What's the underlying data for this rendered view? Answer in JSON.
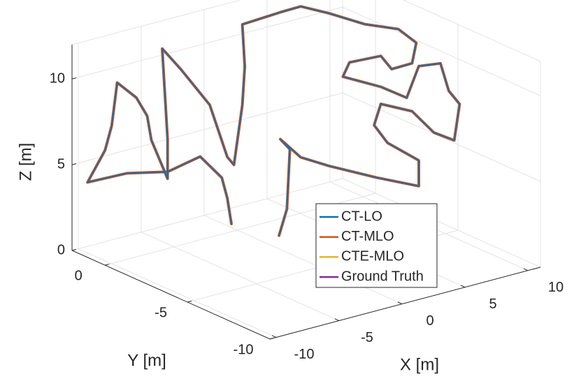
{
  "chart_data": {
    "type": "line3d",
    "xlabel": "X [m]",
    "ylabel": "Y [m]",
    "zlabel": "Z [m]",
    "xlim": [
      -10.5,
      11
    ],
    "ylim": [
      -10,
      2
    ],
    "zlim": [
      0,
      12
    ],
    "xticks": [
      -10,
      -5,
      0,
      5,
      10
    ],
    "yticks": [
      -10,
      -5,
      0
    ],
    "zticks": [
      0,
      5,
      10
    ],
    "grid": true,
    "series": [
      {
        "name": "CT-LO",
        "color": "#0072bd",
        "x": [
          -1.5,
          -1.7,
          -2.0,
          -3.2,
          -5.0,
          -7.2,
          -9.4,
          -8.4,
          -8.0,
          -7.7,
          -6.7,
          -6.1,
          -5.9,
          -5.0,
          -5.0,
          -5.3,
          -4.2,
          -2.7,
          -1.7,
          -1.3,
          -0.9,
          -0.7,
          -0.9,
          1.2,
          2.3,
          3.9,
          5.8,
          7.7,
          8.6,
          8.4,
          7.3,
          6.7,
          5.0,
          4.6,
          6.7,
          8.1,
          8.8,
          10.0,
          10.4,
          11.0,
          10.7,
          9.6,
          8.4,
          6.7,
          6.3,
          7.1,
          8.8,
          8.8,
          6.5,
          3.9,
          2.3,
          1.2,
          1.7,
          1.6,
          1.1
        ],
        "y": [
          -0.8,
          -0.7,
          -0.6,
          -0.2,
          0.4,
          1.2,
          1.9,
          1.6,
          1.5,
          1.4,
          1.0,
          0.8,
          0.7,
          0.4,
          0.4,
          0.5,
          0.2,
          -0.4,
          -0.7,
          -0.8,
          -1.0,
          -1.0,
          -1.0,
          -1.7,
          -2.1,
          -2.6,
          -3.3,
          -3.9,
          -4.3,
          -4.2,
          -3.8,
          -3.6,
          -3.0,
          -2.9,
          -3.6,
          -4.1,
          -4.3,
          -4.7,
          -4.9,
          -5.1,
          -5.0,
          -4.6,
          -4.2,
          -3.6,
          -3.5,
          -3.7,
          -4.3,
          -4.3,
          -3.5,
          -2.6,
          -2.1,
          -1.7,
          -1.9,
          -1.8,
          -1.7
        ],
        "z": [
          1.0,
          2.5,
          3.7,
          5.0,
          4.2,
          4.2,
          3.8,
          5.6,
          7.0,
          9.5,
          8.6,
          7.5,
          6.1,
          3.8,
          6.1,
          11.4,
          10.1,
          8.0,
          4.9,
          4.4,
          7.9,
          10.1,
          12.6,
          13.2,
          13.5,
          13.0,
          12.3,
          11.9,
          11.1,
          9.9,
          9.6,
          10.4,
          10.1,
          9.3,
          8.6,
          7.9,
          9.7,
          9.8,
          8.2,
          7.4,
          5.3,
          5.8,
          7.1,
          7.6,
          6.4,
          5.3,
          4.2,
          2.7,
          3.3,
          4.1,
          4.7,
          5.8,
          5.2,
          1.7,
          0.2
        ]
      },
      {
        "name": "CT-MLO",
        "color": "#d95319",
        "x": [
          -1.5,
          -1.7,
          -2.0,
          -3.2,
          -5.0,
          -7.2,
          -9.4,
          -8.4,
          -8.0,
          -7.7,
          -6.7,
          -6.1,
          -5.9,
          -5.0,
          -5.0,
          -5.3,
          -4.2,
          -2.7,
          -1.7,
          -1.3,
          -0.9,
          -0.7,
          -0.9,
          1.2,
          2.3,
          3.9,
          5.8,
          7.7,
          8.6,
          8.4,
          7.3,
          6.7,
          5.0,
          4.6,
          6.7,
          8.1,
          8.8,
          10.0,
          10.4,
          11.0,
          10.7,
          9.6,
          8.4,
          6.7,
          6.3,
          7.1,
          8.8,
          8.8,
          6.5,
          3.9,
          2.3,
          1.2,
          1.7,
          1.6,
          1.1
        ],
        "y": [
          -0.8,
          -0.7,
          -0.6,
          -0.2,
          0.4,
          1.2,
          1.9,
          1.6,
          1.5,
          1.4,
          1.0,
          0.8,
          0.7,
          0.4,
          0.4,
          0.5,
          0.2,
          -0.4,
          -0.7,
          -0.8,
          -1.0,
          -1.0,
          -1.0,
          -1.7,
          -2.1,
          -2.6,
          -3.3,
          -3.9,
          -4.3,
          -4.2,
          -3.8,
          -3.6,
          -3.0,
          -2.9,
          -3.6,
          -4.1,
          -4.3,
          -4.7,
          -4.9,
          -5.1,
          -5.0,
          -4.6,
          -4.2,
          -3.6,
          -3.5,
          -3.7,
          -4.3,
          -4.3,
          -3.5,
          -2.6,
          -2.1,
          -1.7,
          -1.9,
          -1.8,
          -1.7
        ],
        "z": [
          1.0,
          2.5,
          3.7,
          5.0,
          4.2,
          4.2,
          3.8,
          5.6,
          7.0,
          9.5,
          8.6,
          7.5,
          6.1,
          3.8,
          6.1,
          11.4,
          10.1,
          8.0,
          4.9,
          4.4,
          7.9,
          10.1,
          12.6,
          13.2,
          13.5,
          13.0,
          12.3,
          11.9,
          11.1,
          9.9,
          9.6,
          10.4,
          10.1,
          9.3,
          8.6,
          7.9,
          9.7,
          9.8,
          8.2,
          7.4,
          5.3,
          5.8,
          7.1,
          7.6,
          6.4,
          5.3,
          4.2,
          2.7,
          3.3,
          4.1,
          4.7,
          5.8,
          5.2,
          1.7,
          0.2
        ]
      },
      {
        "name": "CTE-MLO",
        "color": "#edb120",
        "x": [
          -1.5,
          -1.7,
          -2.0,
          -3.2,
          -5.0,
          -7.2,
          -9.4,
          -8.4,
          -8.0,
          -7.7,
          -6.7,
          -6.1,
          -5.9,
          -5.0,
          -5.0,
          -5.3,
          -4.2,
          -2.7,
          -1.7,
          -1.3,
          -0.9,
          -0.7,
          -0.9,
          1.2,
          2.3,
          3.9,
          5.8,
          7.7,
          8.6,
          8.4,
          7.3,
          6.7,
          5.0,
          4.6,
          6.7,
          8.1,
          8.8,
          10.0,
          10.4,
          11.0,
          10.7,
          9.6,
          8.4,
          6.7,
          6.3,
          7.1,
          8.8,
          8.8,
          6.5,
          3.9,
          2.3,
          1.2,
          1.7,
          1.6,
          1.1
        ],
        "y": [
          -0.8,
          -0.7,
          -0.6,
          -0.2,
          0.4,
          1.2,
          1.9,
          1.6,
          1.5,
          1.4,
          1.0,
          0.8,
          0.7,
          0.4,
          0.4,
          0.5,
          0.2,
          -0.4,
          -0.7,
          -0.8,
          -1.0,
          -1.0,
          -1.0,
          -1.7,
          -2.1,
          -2.6,
          -3.3,
          -3.9,
          -4.3,
          -4.2,
          -3.8,
          -3.6,
          -3.0,
          -2.9,
          -3.6,
          -4.1,
          -4.3,
          -4.7,
          -4.9,
          -5.1,
          -5.0,
          -4.6,
          -4.2,
          -3.6,
          -3.5,
          -3.7,
          -4.3,
          -4.3,
          -3.5,
          -2.6,
          -2.1,
          -1.7,
          -1.9,
          -1.8,
          -1.7
        ],
        "z": [
          1.0,
          2.5,
          3.7,
          5.0,
          4.2,
          4.2,
          3.8,
          5.6,
          7.0,
          9.5,
          8.6,
          7.5,
          6.1,
          3.8,
          6.1,
          11.4,
          10.1,
          8.0,
          4.9,
          4.4,
          7.9,
          10.1,
          12.6,
          13.2,
          13.5,
          13.0,
          12.3,
          11.9,
          11.1,
          9.9,
          9.6,
          10.4,
          10.1,
          9.3,
          8.6,
          7.9,
          9.7,
          9.8,
          8.2,
          7.4,
          5.3,
          5.8,
          7.1,
          7.6,
          6.4,
          5.3,
          4.2,
          2.7,
          3.3,
          4.1,
          4.7,
          5.8,
          5.2,
          1.7,
          0.2
        ]
      },
      {
        "name": "Ground Truth",
        "color": "#7e2f8e",
        "x": [
          -1.5,
          -1.7,
          -2.0,
          -3.2,
          -5.0,
          -7.2,
          -9.4,
          -8.4,
          -8.0,
          -7.7,
          -6.7,
          -6.1,
          -5.9,
          -5.0,
          -5.0,
          -5.3,
          -4.2,
          -2.7,
          -1.7,
          -1.3,
          -0.9,
          -0.7,
          -0.9,
          1.2,
          2.3,
          3.9,
          5.8,
          7.7,
          8.6,
          8.4,
          7.3,
          6.7,
          5.0,
          4.6,
          6.7,
          8.1,
          8.8,
          10.0,
          10.4,
          11.0,
          10.7,
          9.6,
          8.4,
          6.7,
          6.3,
          7.1,
          8.8,
          8.8,
          6.5,
          3.9,
          2.3,
          1.2,
          1.7,
          1.6,
          1.1
        ],
        "y": [
          -0.8,
          -0.7,
          -0.6,
          -0.2,
          0.4,
          1.2,
          1.9,
          1.6,
          1.5,
          1.4,
          1.0,
          0.8,
          0.7,
          0.4,
          0.4,
          0.5,
          0.2,
          -0.4,
          -0.7,
          -0.8,
          -1.0,
          -1.0,
          -1.0,
          -1.7,
          -2.1,
          -2.6,
          -3.3,
          -3.9,
          -4.3,
          -4.2,
          -3.8,
          -3.6,
          -3.0,
          -2.9,
          -3.6,
          -4.1,
          -4.3,
          -4.7,
          -4.9,
          -5.1,
          -5.0,
          -4.6,
          -4.2,
          -3.6,
          -3.5,
          -3.7,
          -4.3,
          -4.3,
          -3.5,
          -2.6,
          -2.1,
          -1.7,
          -1.9,
          -1.8,
          -1.7
        ],
        "z": [
          1.0,
          2.5,
          3.7,
          5.0,
          4.2,
          4.2,
          3.8,
          5.6,
          7.0,
          9.5,
          8.6,
          7.5,
          6.1,
          3.8,
          6.1,
          11.4,
          10.1,
          8.0,
          4.9,
          4.4,
          7.9,
          10.1,
          12.6,
          13.2,
          13.5,
          13.0,
          12.3,
          11.9,
          11.1,
          9.9,
          9.6,
          10.4,
          10.1,
          9.3,
          8.6,
          7.9,
          9.7,
          9.8,
          8.2,
          7.4,
          5.3,
          5.8,
          7.1,
          7.6,
          6.4,
          5.3,
          4.2,
          2.7,
          3.3,
          4.1,
          4.7,
          5.8,
          5.2,
          1.7,
          0.2
        ]
      }
    ]
  }
}
